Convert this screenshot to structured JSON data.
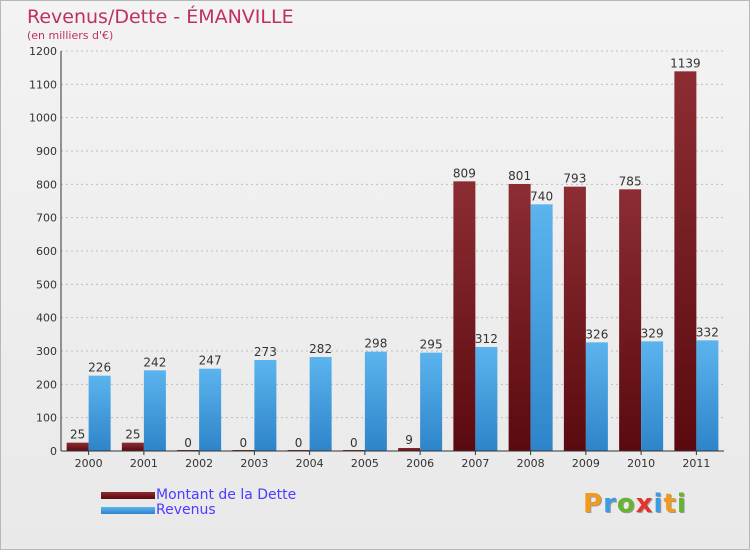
{
  "chart_data": {
    "type": "bar",
    "title": "Revenus/Dette - ÉMANVILLE",
    "subtitle": "(en milliers d'€)",
    "categories": [
      "2000",
      "2001",
      "2002",
      "2003",
      "2004",
      "2005",
      "2006",
      "2007",
      "2008",
      "2009",
      "2010",
      "2011"
    ],
    "series": [
      {
        "name": "Montant de la Dette",
        "color": "#7a1d22",
        "values": [
          25,
          25,
          0,
          0,
          0,
          0,
          9,
          809,
          801,
          793,
          785,
          1139
        ]
      },
      {
        "name": "Revenus",
        "color": "#4aa6e8",
        "values": [
          226,
          242,
          247,
          273,
          282,
          298,
          295,
          312,
          740,
          326,
          329,
          332
        ]
      }
    ],
    "ylim": [
      0,
      1200
    ],
    "yticks": [
      0,
      100,
      200,
      300,
      400,
      500,
      600,
      700,
      800,
      900,
      1000,
      1100,
      1200
    ],
    "grid": true,
    "legend": "bottom-left"
  },
  "logo": {
    "text": "Proxiti",
    "colors": [
      "#f29a1e",
      "#3d9be0",
      "#66b32e",
      "#e3342f",
      "#3d9be0",
      "#f29a1e",
      "#66b32e"
    ]
  }
}
